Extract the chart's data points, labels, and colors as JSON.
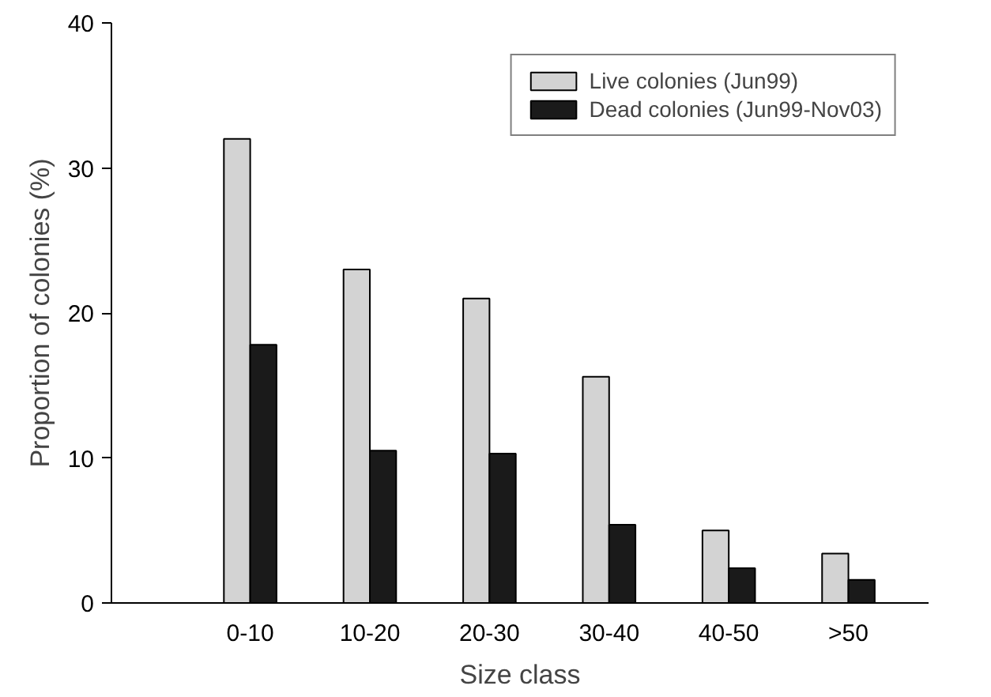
{
  "chart_data": {
    "type": "bar",
    "xlabel": "Size class",
    "ylabel": "Proportion of colonies (%)",
    "categories": [
      "0-10",
      "10-20",
      "20-30",
      "30-40",
      "40-50",
      ">50"
    ],
    "series": [
      {
        "name": "Live colonies (Jun99)",
        "color": "#d3d3d3",
        "values": [
          32,
          23,
          21,
          15.6,
          5,
          3.4
        ]
      },
      {
        "name": "Dead colonies (Jun99-Nov03)",
        "color": "#1a1a1a",
        "values": [
          17.8,
          10.5,
          10.3,
          5.4,
          2.4,
          1.6
        ]
      }
    ],
    "ylim": [
      0,
      40
    ],
    "yticks": [
      0,
      10,
      20,
      30,
      40
    ],
    "grid": false,
    "legend": "top right"
  }
}
